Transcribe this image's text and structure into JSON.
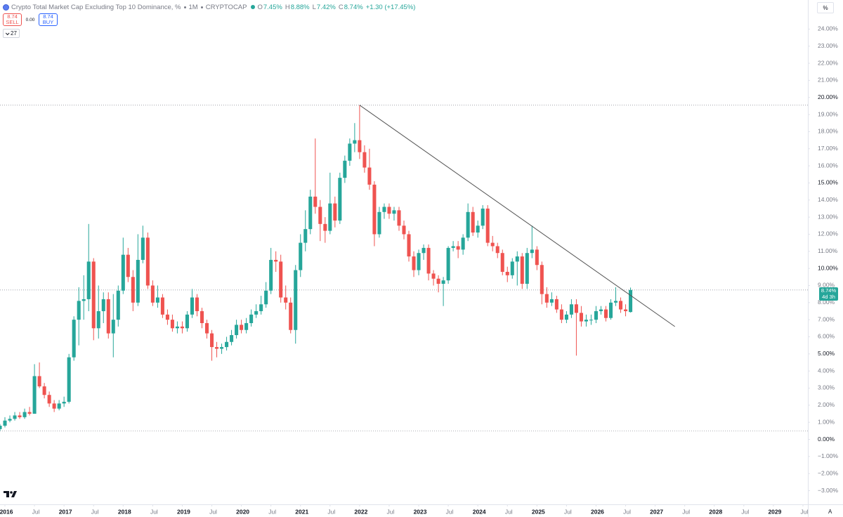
{
  "header": {
    "title": "Crypto Total Market Cap Excluding Top 10 Dominance, %",
    "interval": "1M",
    "exchange": "CRYPTOCAP",
    "ohlc": [
      {
        "key": "O",
        "value": "7.45%"
      },
      {
        "key": "H",
        "value": "8.88%"
      },
      {
        "key": "L",
        "value": "7.42%"
      },
      {
        "key": "C",
        "value": "8.74%"
      }
    ],
    "change": "+1.30 (+17.45%)"
  },
  "trade": {
    "sell_price": "8.74",
    "sell": "SELL",
    "spread": "0.00",
    "buy_price": "8.74",
    "buy": "BUY"
  },
  "indicators": "27",
  "unit_button": "%",
  "scale_mode": "A",
  "price_tag": {
    "price": "8.74%",
    "countdown": "4d 3h"
  },
  "chart_data": {
    "type": "candlestick",
    "up_color": "#26a69a",
    "down_color": "#ef5350",
    "grid": false,
    "x": [
      "2015-12",
      "2016-01",
      "2016-02",
      "2016-03",
      "2016-04",
      "2016-05",
      "2016-06",
      "2016-07",
      "2016-08",
      "2016-09",
      "2016-10",
      "2016-11",
      "2016-12",
      "2017-01",
      "2017-02",
      "2017-03",
      "2017-04",
      "2017-05",
      "2017-06",
      "2017-07",
      "2017-08",
      "2017-09",
      "2017-10",
      "2017-11",
      "2017-12",
      "2018-01",
      "2018-02",
      "2018-03",
      "2018-04",
      "2018-05",
      "2018-06",
      "2018-07",
      "2018-08",
      "2018-09",
      "2018-10",
      "2018-11",
      "2018-12",
      "2019-01",
      "2019-02",
      "2019-03",
      "2019-04",
      "2019-05",
      "2019-06",
      "2019-07",
      "2019-08",
      "2019-09",
      "2019-10",
      "2019-11",
      "2019-12",
      "2020-01",
      "2020-02",
      "2020-03",
      "2020-04",
      "2020-05",
      "2020-06",
      "2020-07",
      "2020-08",
      "2020-09",
      "2020-10",
      "2020-11",
      "2020-12",
      "2021-01",
      "2021-02",
      "2021-03",
      "2021-04",
      "2021-05",
      "2021-06",
      "2021-07",
      "2021-08",
      "2021-09",
      "2021-10",
      "2021-11",
      "2021-12",
      "2022-01",
      "2022-02",
      "2022-03",
      "2022-04",
      "2022-05",
      "2022-06",
      "2022-07",
      "2022-08",
      "2022-09",
      "2022-10",
      "2022-11",
      "2022-12",
      "2023-01",
      "2023-02",
      "2023-03",
      "2023-04",
      "2023-05",
      "2023-06",
      "2023-07",
      "2023-08",
      "2023-09",
      "2023-10",
      "2023-11",
      "2023-12",
      "2024-01",
      "2024-02",
      "2024-03",
      "2024-04",
      "2024-05",
      "2024-06",
      "2024-07",
      "2024-08",
      "2024-09",
      "2024-10",
      "2024-11",
      "2024-12",
      "2025-01",
      "2025-02",
      "2025-03",
      "2025-04",
      "2025-05",
      "2025-06",
      "2025-07",
      "2025-08",
      "2025-09",
      "2025-10",
      "2025-11",
      "2025-12",
      "2026-01",
      "2026-02",
      "2026-03",
      "2026-04",
      "2026-05",
      "2026-06",
      "2026-07",
      "2026-08"
    ],
    "candles": [
      [
        0.6,
        0.9,
        0.5,
        0.8
      ],
      [
        0.8,
        1.3,
        0.7,
        1.1
      ],
      [
        1.1,
        1.4,
        1.0,
        1.2
      ],
      [
        1.2,
        1.6,
        1.1,
        1.4
      ],
      [
        1.4,
        1.6,
        1.2,
        1.3
      ],
      [
        1.3,
        1.8,
        1.2,
        1.6
      ],
      [
        1.6,
        1.9,
        1.4,
        1.5
      ],
      [
        1.5,
        4.4,
        1.5,
        3.7
      ],
      [
        3.7,
        4.5,
        3.0,
        3.1
      ],
      [
        3.1,
        3.3,
        2.4,
        2.6
      ],
      [
        2.6,
        2.8,
        1.9,
        2.1
      ],
      [
        2.1,
        2.3,
        1.6,
        1.8
      ],
      [
        1.8,
        2.3,
        1.7,
        2.1
      ],
      [
        2.1,
        2.5,
        1.9,
        2.2
      ],
      [
        2.2,
        5.0,
        2.1,
        4.8
      ],
      [
        4.8,
        7.2,
        4.6,
        7.0
      ],
      [
        7.0,
        8.9,
        5.5,
        8.1
      ],
      [
        8.1,
        9.6,
        7.0,
        8.2
      ],
      [
        8.2,
        12.6,
        7.5,
        10.4
      ],
      [
        10.4,
        10.6,
        5.8,
        6.5
      ],
      [
        6.5,
        9.0,
        5.9,
        7.5
      ],
      [
        7.5,
        8.6,
        6.8,
        8.2
      ],
      [
        8.2,
        8.6,
        5.9,
        6.2
      ],
      [
        6.2,
        8.5,
        4.8,
        7.0
      ],
      [
        7.0,
        9.0,
        6.6,
        8.7
      ],
      [
        8.7,
        11.8,
        8.5,
        10.8
      ],
      [
        10.8,
        11.2,
        9.2,
        9.5
      ],
      [
        9.5,
        9.9,
        7.5,
        8.0
      ],
      [
        8.0,
        12.0,
        7.8,
        10.5
      ],
      [
        10.5,
        12.5,
        10.3,
        11.8
      ],
      [
        11.8,
        12.1,
        8.8,
        9.0
      ],
      [
        9.0,
        9.3,
        7.8,
        8.0
      ],
      [
        8.0,
        9.0,
        7.7,
        8.3
      ],
      [
        8.3,
        8.5,
        7.1,
        7.3
      ],
      [
        7.3,
        7.6,
        6.7,
        7.0
      ],
      [
        7.0,
        7.3,
        6.3,
        6.5
      ],
      [
        6.5,
        6.9,
        6.2,
        6.6
      ],
      [
        6.6,
        6.9,
        6.2,
        6.5
      ],
      [
        6.5,
        7.5,
        6.3,
        7.3
      ],
      [
        7.3,
        8.8,
        7.1,
        8.3
      ],
      [
        8.3,
        8.5,
        7.2,
        7.5
      ],
      [
        7.5,
        7.7,
        6.5,
        6.8
      ],
      [
        6.8,
        7.0,
        5.9,
        6.2
      ],
      [
        6.2,
        6.4,
        4.6,
        5.4
      ],
      [
        5.4,
        5.7,
        4.8,
        5.3
      ],
      [
        5.3,
        5.6,
        5.0,
        5.4
      ],
      [
        5.4,
        6.0,
        5.2,
        5.7
      ],
      [
        5.7,
        6.4,
        5.5,
        6.1
      ],
      [
        6.1,
        7.0,
        5.9,
        6.7
      ],
      [
        6.7,
        7.0,
        6.2,
        6.4
      ],
      [
        6.4,
        7.1,
        6.2,
        6.8
      ],
      [
        6.8,
        7.6,
        6.6,
        7.3
      ],
      [
        7.3,
        7.9,
        7.1,
        7.5
      ],
      [
        7.5,
        8.4,
        7.3,
        7.9
      ],
      [
        7.9,
        9.2,
        7.7,
        8.7
      ],
      [
        8.7,
        11.2,
        8.5,
        10.5
      ],
      [
        10.5,
        11.0,
        9.8,
        10.4
      ],
      [
        10.4,
        10.8,
        8.0,
        8.3
      ],
      [
        8.3,
        9.0,
        7.6,
        8.0
      ],
      [
        8.0,
        8.3,
        6.2,
        6.4
      ],
      [
        6.4,
        10.2,
        5.6,
        9.9
      ],
      [
        9.9,
        12.0,
        9.5,
        11.5
      ],
      [
        11.5,
        13.4,
        11.0,
        12.3
      ],
      [
        12.3,
        14.6,
        12.0,
        14.2
      ],
      [
        14.2,
        17.6,
        13.2,
        13.6
      ],
      [
        13.6,
        14.0,
        11.6,
        12.6
      ],
      [
        12.6,
        13.0,
        11.5,
        12.2
      ],
      [
        12.2,
        15.6,
        12.0,
        13.8
      ],
      [
        13.8,
        14.2,
        12.4,
        12.8
      ],
      [
        12.8,
        15.6,
        12.6,
        15.3
      ],
      [
        15.3,
        16.6,
        15.0,
        16.3
      ],
      [
        16.3,
        17.6,
        16.0,
        17.3
      ],
      [
        17.3,
        18.5,
        16.8,
        17.5
      ],
      [
        17.5,
        19.55,
        16.4,
        16.8
      ],
      [
        16.8,
        17.2,
        15.6,
        15.9
      ],
      [
        15.9,
        17.0,
        14.6,
        14.9
      ],
      [
        14.9,
        15.1,
        11.3,
        12.0
      ],
      [
        12.0,
        13.6,
        11.8,
        13.3
      ],
      [
        13.3,
        13.8,
        12.9,
        13.6
      ],
      [
        13.6,
        13.8,
        12.9,
        13.2
      ],
      [
        13.2,
        13.6,
        12.8,
        13.4
      ],
      [
        13.4,
        13.6,
        12.2,
        12.5
      ],
      [
        12.5,
        12.8,
        11.7,
        12.0
      ],
      [
        12.0,
        12.2,
        10.4,
        10.7
      ],
      [
        10.7,
        11.0,
        9.5,
        9.9
      ],
      [
        9.9,
        11.1,
        9.6,
        10.9
      ],
      [
        10.9,
        11.4,
        10.5,
        11.2
      ],
      [
        11.2,
        11.4,
        9.3,
        9.7
      ],
      [
        9.7,
        9.9,
        9.0,
        9.4
      ],
      [
        9.4,
        9.6,
        8.6,
        9.1
      ],
      [
        9.1,
        9.5,
        7.8,
        9.3
      ],
      [
        9.3,
        11.3,
        9.1,
        11.2
      ],
      [
        11.2,
        11.6,
        11.0,
        11.3
      ],
      [
        11.3,
        11.6,
        10.6,
        11.1
      ],
      [
        11.1,
        12.0,
        10.8,
        11.8
      ],
      [
        11.8,
        13.8,
        11.6,
        13.3
      ],
      [
        13.3,
        13.6,
        11.9,
        12.1
      ],
      [
        12.1,
        12.8,
        11.8,
        12.5
      ],
      [
        12.5,
        13.7,
        12.3,
        13.5
      ],
      [
        13.5,
        13.7,
        11.3,
        11.5
      ],
      [
        11.5,
        11.9,
        11.0,
        11.3
      ],
      [
        11.3,
        11.5,
        10.6,
        10.9
      ],
      [
        10.9,
        11.1,
        9.6,
        9.8
      ],
      [
        9.8,
        10.1,
        9.2,
        9.6
      ],
      [
        9.6,
        10.6,
        9.4,
        10.4
      ],
      [
        10.4,
        11.0,
        9.0,
        10.7
      ],
      [
        10.7,
        10.9,
        8.8,
        9.1
      ],
      [
        9.1,
        11.2,
        8.8,
        10.9
      ],
      [
        10.9,
        12.5,
        10.6,
        11.1
      ],
      [
        11.1,
        11.3,
        9.9,
        10.2
      ],
      [
        10.2,
        10.4,
        7.9,
        8.5
      ],
      [
        8.5,
        8.9,
        7.7,
        8.0
      ],
      [
        8.0,
        8.6,
        7.8,
        8.2
      ],
      [
        8.2,
        8.4,
        7.4,
        7.6
      ],
      [
        7.6,
        7.9,
        6.8,
        7.0
      ],
      [
        7.0,
        7.5,
        6.8,
        7.3
      ],
      [
        7.3,
        8.2,
        7.1,
        7.9
      ],
      [
        7.9,
        8.2,
        4.9,
        7.4
      ],
      [
        7.4,
        7.8,
        6.6,
        6.9
      ],
      [
        6.9,
        7.3,
        6.6,
        7.0
      ],
      [
        7.0,
        7.3,
        6.7,
        7.0
      ],
      [
        7.0,
        7.8,
        6.8,
        7.5
      ],
      [
        7.5,
        7.8,
        7.3,
        7.6
      ],
      [
        7.6,
        7.8,
        6.9,
        7.1
      ],
      [
        7.1,
        8.2,
        7.0,
        8.0
      ],
      [
        8.0,
        8.9,
        7.8,
        8.1
      ],
      [
        8.1,
        8.3,
        7.4,
        7.6
      ],
      [
        7.6,
        7.9,
        7.2,
        7.5
      ],
      [
        7.45,
        8.88,
        7.42,
        8.74
      ]
    ],
    "trendline": {
      "x": [
        "2022-01",
        "2027-05"
      ],
      "y": [
        19.55,
        6.6
      ],
      "color": "#555555"
    },
    "xlim": [
      "2015-12",
      "2029-08"
    ],
    "xticks": [
      {
        "value": "2016-01",
        "label": "2016"
      },
      {
        "value": "2016-07",
        "label": "Jul"
      },
      {
        "value": "2017-01",
        "label": "2017"
      },
      {
        "value": "2017-07",
        "label": "Jul"
      },
      {
        "value": "2018-01",
        "label": "2018"
      },
      {
        "value": "2018-07",
        "label": "Jul"
      },
      {
        "value": "2019-01",
        "label": "2019"
      },
      {
        "value": "2019-07",
        "label": "Jul"
      },
      {
        "value": "2020-01",
        "label": "2020"
      },
      {
        "value": "2020-07",
        "label": "Jul"
      },
      {
        "value": "2021-01",
        "label": "2021"
      },
      {
        "value": "2021-07",
        "label": "Jul"
      },
      {
        "value": "2022-01",
        "label": "2022"
      },
      {
        "value": "2022-07",
        "label": "Jul"
      },
      {
        "value": "2023-01",
        "label": "2023"
      },
      {
        "value": "2023-07",
        "label": "Jul"
      },
      {
        "value": "2024-01",
        "label": "2024"
      },
      {
        "value": "2024-07",
        "label": "Jul"
      },
      {
        "value": "2025-01",
        "label": "2025"
      },
      {
        "value": "2025-07",
        "label": "Jul"
      },
      {
        "value": "2026-01",
        "label": "2026"
      },
      {
        "value": "2026-07",
        "label": "Jul"
      },
      {
        "value": "2027-01",
        "label": "2027"
      },
      {
        "value": "2027-07",
        "label": "Jul"
      },
      {
        "value": "2028-01",
        "label": "2028"
      },
      {
        "value": "2028-07",
        "label": "Jul"
      },
      {
        "value": "2029-01",
        "label": "2029"
      },
      {
        "value": "2029-07",
        "label": "Jul"
      }
    ],
    "ylim": [
      -3.8,
      25.7
    ],
    "yticks": [
      {
        "value": -3,
        "label": "−3.00%"
      },
      {
        "value": -2,
        "label": "−2.00%"
      },
      {
        "value": -1,
        "label": "−1.00%"
      },
      {
        "value": 0,
        "label": "0.00%"
      },
      {
        "value": 1,
        "label": "1.00%"
      },
      {
        "value": 2,
        "label": "2.00%"
      },
      {
        "value": 3,
        "label": "3.00%"
      },
      {
        "value": 4,
        "label": "4.00%"
      },
      {
        "value": 5,
        "label": "5.00%"
      },
      {
        "value": 6,
        "label": "6.00%"
      },
      {
        "value": 7,
        "label": "7.00%"
      },
      {
        "value": 8,
        "label": "8.00%"
      },
      {
        "value": 9,
        "label": "9.00%"
      },
      {
        "value": 10,
        "label": "10.00%"
      },
      {
        "value": 11,
        "label": "11.00%"
      },
      {
        "value": 12,
        "label": "12.00%"
      },
      {
        "value": 13,
        "label": "13.00%"
      },
      {
        "value": 14,
        "label": "14.00%"
      },
      {
        "value": 15,
        "label": "15.00%"
      },
      {
        "value": 16,
        "label": "16.00%"
      },
      {
        "value": 17,
        "label": "17.00%"
      },
      {
        "value": 18,
        "label": "18.00%"
      },
      {
        "value": 19,
        "label": "19.00%"
      },
      {
        "value": 20,
        "label": "20.00%"
      },
      {
        "value": 21,
        "label": "21.00%"
      },
      {
        "value": 22,
        "label": "22.00%"
      },
      {
        "value": 23,
        "label": "23.00%"
      },
      {
        "value": 24,
        "label": "24.00%"
      }
    ]
  }
}
